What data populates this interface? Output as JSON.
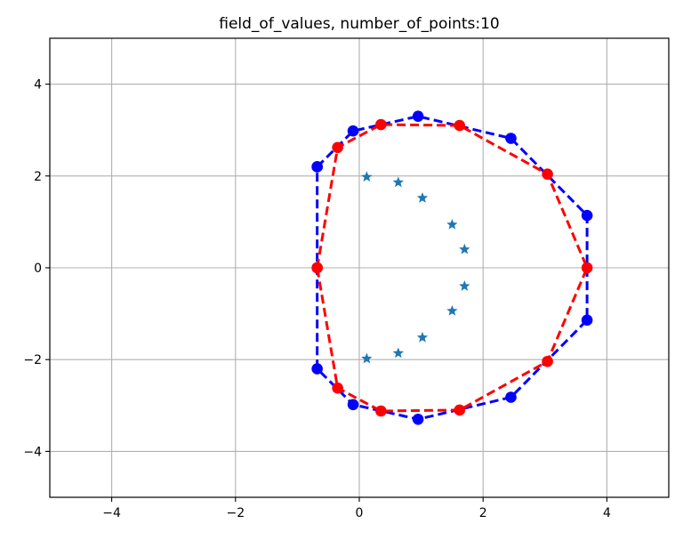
{
  "chart_data": {
    "type": "scatter",
    "title": "field_of_values, number_of_points:10",
    "xlabel": "",
    "ylabel": "",
    "xlim": [
      -5,
      5
    ],
    "ylim": [
      -5,
      5
    ],
    "xticks": [
      -4,
      -2,
      0,
      2,
      4
    ],
    "yticks": [
      -4,
      -2,
      0,
      2,
      4
    ],
    "xtick_labels": [
      "−4",
      "−2",
      "0",
      "2",
      "4"
    ],
    "ytick_labels": [
      "−4",
      "−2",
      "0",
      "2",
      "4"
    ],
    "grid": true,
    "colors": {
      "outer": "#0000ff",
      "inner": "#ff0000",
      "eigen": "#1f77b4",
      "grid": "#b0b0b0"
    },
    "series": [
      {
        "role": "outer-polygon",
        "marker": "circle",
        "linestyle": "dashed",
        "points": [
          [
            -0.68,
            2.2
          ],
          [
            -0.1,
            2.98
          ],
          [
            0.95,
            3.3
          ],
          [
            2.45,
            2.82
          ],
          [
            3.68,
            1.14
          ],
          [
            3.68,
            -1.14
          ],
          [
            2.45,
            -2.82
          ],
          [
            0.95,
            -3.3
          ],
          [
            -0.1,
            -2.98
          ],
          [
            -0.68,
            -2.2
          ],
          [
            -0.68,
            2.2
          ]
        ]
      },
      {
        "role": "inner-polygon",
        "marker": "circle",
        "linestyle": "dashed",
        "points": [
          [
            -0.68,
            0
          ],
          [
            -0.35,
            2.62
          ],
          [
            0.35,
            3.12
          ],
          [
            1.62,
            3.1
          ],
          [
            3.04,
            2.04
          ],
          [
            3.68,
            0
          ],
          [
            3.04,
            -2.04
          ],
          [
            1.62,
            -3.1
          ],
          [
            0.35,
            -3.12
          ],
          [
            -0.35,
            -2.62
          ],
          [
            -0.68,
            0
          ]
        ]
      },
      {
        "role": "eigenvalues",
        "marker": "star",
        "linestyle": "none",
        "points": [
          [
            0.12,
            1.98
          ],
          [
            0.63,
            1.86
          ],
          [
            1.02,
            1.52
          ],
          [
            1.5,
            0.94
          ],
          [
            1.7,
            0.4
          ],
          [
            1.7,
            -0.4
          ],
          [
            1.5,
            -0.94
          ],
          [
            1.02,
            -1.52
          ],
          [
            0.63,
            -1.86
          ],
          [
            0.12,
            -1.98
          ]
        ]
      }
    ]
  }
}
